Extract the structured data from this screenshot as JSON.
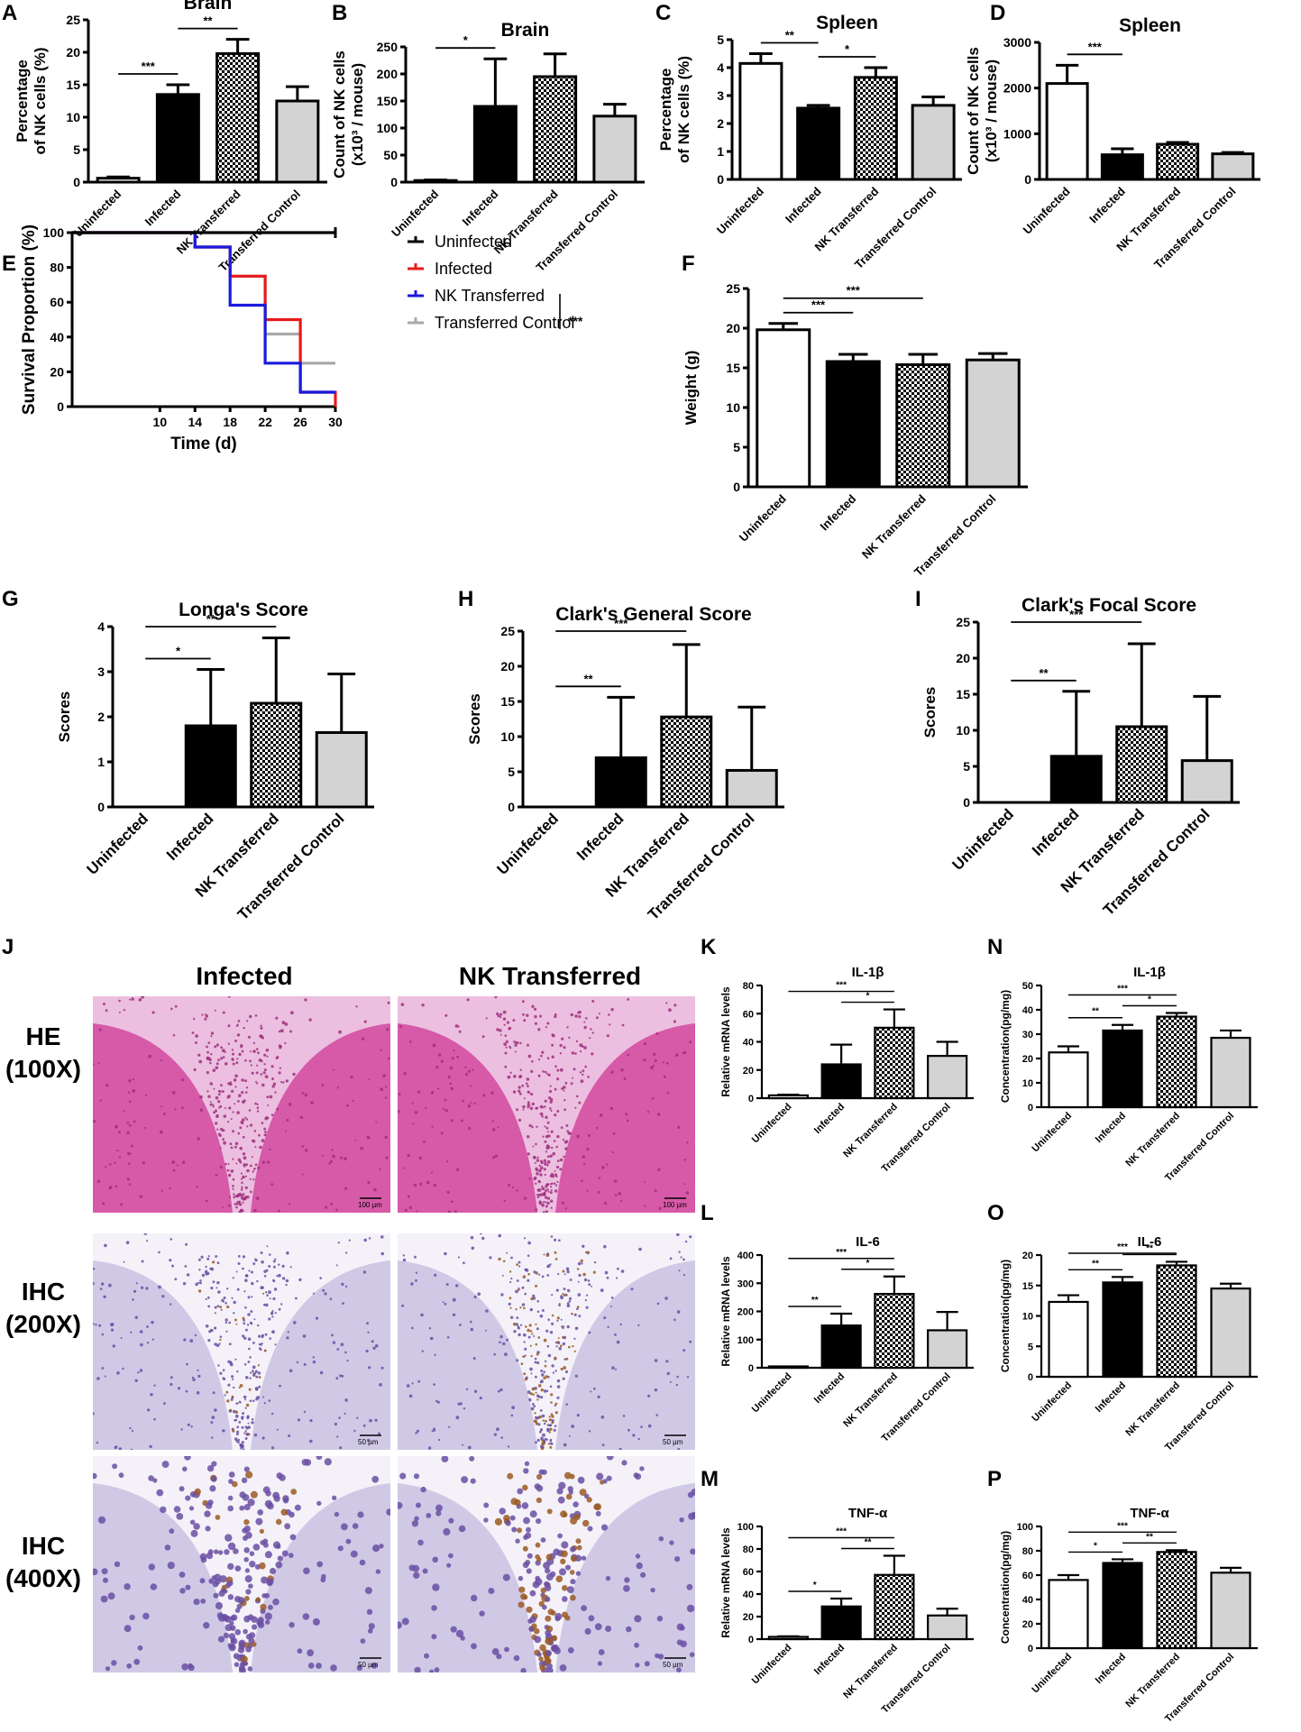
{
  "panel_labels": [
    "A",
    "B",
    "C",
    "D",
    "E",
    "F",
    "G",
    "H",
    "I",
    "J",
    "K",
    "L",
    "M",
    "N",
    "O",
    "P"
  ],
  "groups": [
    "Uninfected",
    "Infected",
    "NK Transferred",
    "Transferred Control"
  ],
  "fills": {
    "Uninfected": "white",
    "Infected": "black",
    "NK Transferred": "checker",
    "Transferred Control": "#d3d3d3"
  },
  "chart_data": [
    {
      "id": "A",
      "type": "bar",
      "title": "Brain",
      "ylabel": "Percentage of NK cells (%)",
      "ylim": [
        0,
        25
      ],
      "yticks": [
        0,
        5,
        10,
        15,
        20,
        25
      ],
      "categories": [
        "Uninfected",
        "Infected",
        "NK Transferred",
        "Transferred Control"
      ],
      "values": [
        0.6,
        13.5,
        19.8,
        12.5
      ],
      "errors": [
        0.2,
        1.5,
        2.2,
        2.2
      ],
      "significance": [
        {
          "from": 0,
          "to": 1,
          "label": "***"
        },
        {
          "from": 1,
          "to": 2,
          "label": "**"
        }
      ]
    },
    {
      "id": "B",
      "type": "bar",
      "title": "Brain",
      "ylabel": "Count of NK cells (x10³ / mouse)",
      "ylim": [
        0,
        250
      ],
      "yticks": [
        0,
        50,
        100,
        150,
        200,
        250
      ],
      "categories": [
        "Uninfected",
        "Infected",
        "NK Transferred",
        "Transferred Control"
      ],
      "values": [
        3,
        140,
        195,
        122
      ],
      "errors": [
        1,
        88,
        42,
        22
      ],
      "significance": [
        {
          "from": 0,
          "to": 1,
          "label": "*"
        }
      ]
    },
    {
      "id": "C",
      "type": "bar",
      "title": "Spleen",
      "ylabel": "Percentage of NK cells (%)",
      "ylim": [
        0,
        5
      ],
      "yticks": [
        0,
        1,
        2,
        3,
        4,
        5
      ],
      "categories": [
        "Uninfected",
        "Infected",
        "NK Transferred",
        "Transferred Control"
      ],
      "values": [
        4.15,
        2.55,
        3.65,
        2.65
      ],
      "errors": [
        0.35,
        0.1,
        0.35,
        0.3
      ],
      "significance": [
        {
          "from": 0,
          "to": 1,
          "label": "**"
        },
        {
          "from": 1,
          "to": 2,
          "label": "*"
        }
      ]
    },
    {
      "id": "D",
      "type": "bar",
      "title": "Spleen",
      "ylabel": "Count of NK cells (x10³ / mouse)",
      "ylim": [
        0,
        3000
      ],
      "yticks": [
        0,
        1000,
        2000,
        3000
      ],
      "categories": [
        "Uninfected",
        "Infected",
        "NK Transferred",
        "Transferred Control"
      ],
      "values": [
        2100,
        540,
        770,
        560
      ],
      "errors": [
        400,
        130,
        40,
        30
      ],
      "significance": [
        {
          "from": 0,
          "to": 1,
          "label": "***"
        }
      ]
    },
    {
      "id": "E",
      "type": "line",
      "xlabel": "Time (d)",
      "ylabel": "Survival Proportion (%)",
      "xlim": [
        0,
        30
      ],
      "ylim": [
        0,
        100
      ],
      "xticks": [
        10,
        14,
        18,
        22,
        26,
        30
      ],
      "yticks": [
        0,
        20,
        40,
        60,
        80,
        100
      ],
      "series": [
        {
          "name": "Uninfected",
          "color": "#000000",
          "x": [
            0,
            30
          ],
          "y": [
            100,
            100
          ]
        },
        {
          "name": "Infected",
          "color": "#e8191c",
          "x": [
            0,
            14,
            14,
            18,
            18,
            22,
            22,
            26,
            26,
            30,
            30
          ],
          "y": [
            100,
            100,
            91.7,
            91.7,
            75,
            75,
            50,
            50,
            8.3,
            8.3,
            0
          ]
        },
        {
          "name": "NK Transferred",
          "color": "#1a1adc",
          "x": [
            0,
            14,
            14,
            18,
            18,
            22,
            22,
            26,
            26,
            30
          ],
          "y": [
            100,
            100,
            91.7,
            91.7,
            58.3,
            58.3,
            25,
            25,
            8.3,
            8.3
          ]
        },
        {
          "name": "Transferred Control",
          "color": "#a9a9a9",
          "x": [
            0,
            14,
            14,
            18,
            18,
            22,
            22,
            26,
            26,
            30
          ],
          "y": [
            100,
            100,
            91.7,
            91.7,
            75,
            75,
            41.7,
            41.7,
            25,
            25
          ]
        }
      ],
      "significance": "***"
    },
    {
      "id": "F",
      "type": "bar",
      "ylabel": "Weight (g)",
      "ylim": [
        0,
        25
      ],
      "yticks": [
        0,
        5,
        10,
        15,
        20,
        25
      ],
      "categories": [
        "",
        "Infected",
        "NK Transferred",
        "Transferred Control"
      ],
      "values": [
        19.8,
        15.8,
        15.4,
        16.0
      ],
      "errors": [
        0.8,
        0.9,
        1.3,
        0.8
      ],
      "significance": [
        {
          "from": 0,
          "to": 1,
          "label": "***"
        },
        {
          "from": 0,
          "to": 2,
          "label": "***"
        }
      ]
    },
    {
      "id": "G",
      "type": "bar",
      "title": "Longa's Score",
      "ylabel": "Scores",
      "ylim": [
        0,
        4
      ],
      "yticks": [
        0,
        1,
        2,
        3,
        4
      ],
      "categories": [
        "Uninfected",
        "Infected",
        "NK Transferred",
        "Transferred Control"
      ],
      "values": [
        0,
        1.8,
        2.3,
        1.65
      ],
      "errors": [
        0,
        1.25,
        1.45,
        1.3
      ],
      "significance": [
        {
          "from": 0,
          "to": 1,
          "label": "*"
        },
        {
          "from": 0,
          "to": 2,
          "label": "**"
        }
      ]
    },
    {
      "id": "H",
      "type": "bar",
      "title": "Clark's General Score",
      "ylabel": "Scores",
      "ylim": [
        0,
        25
      ],
      "yticks": [
        0,
        5,
        10,
        15,
        20,
        25
      ],
      "categories": [
        "Uninfected",
        "Infected",
        "NK Transferred",
        "Transferred Control"
      ],
      "values": [
        0,
        7,
        12.8,
        5.2
      ],
      "errors": [
        0,
        8.6,
        10.3,
        9.0
      ],
      "significance": [
        {
          "from": 0,
          "to": 1,
          "label": "**"
        },
        {
          "from": 0,
          "to": 2,
          "label": "***"
        }
      ]
    },
    {
      "id": "I",
      "type": "bar",
      "title": "Clark's Focal Score",
      "ylabel": "Scores",
      "ylim": [
        0,
        25
      ],
      "yticks": [
        0,
        5,
        10,
        15,
        20,
        25
      ],
      "categories": [
        "Uninfected",
        "Infected",
        "NK Transferred",
        "Transferred Control"
      ],
      "values": [
        0,
        6.4,
        10.5,
        5.8
      ],
      "errors": [
        0,
        9.0,
        11.5,
        8.9
      ],
      "significance": [
        {
          "from": 0,
          "to": 1,
          "label": "**"
        },
        {
          "from": 0,
          "to": 2,
          "label": "***"
        }
      ]
    },
    {
      "id": "K",
      "type": "bar",
      "title": "IL-1β",
      "ylabel": "Relative mRNA levels",
      "ylim": [
        0,
        80
      ],
      "yticks": [
        0,
        20,
        40,
        60,
        80
      ],
      "categories": [
        "Uninfected",
        "Infected",
        "NK Transferred",
        "Transferred Control"
      ],
      "values": [
        2,
        24,
        50,
        30
      ],
      "errors": [
        0.5,
        14,
        13,
        10
      ],
      "significance": [
        {
          "from": 1,
          "to": 2,
          "label": "*"
        },
        {
          "from": 0,
          "to": 2,
          "label": "***"
        }
      ]
    },
    {
      "id": "L",
      "type": "bar",
      "title": "IL-6",
      "ylabel": "Relative mRNA levels",
      "ylim": [
        0,
        400
      ],
      "yticks": [
        0,
        100,
        200,
        300,
        400
      ],
      "categories": [
        "Uninfected",
        "Infected",
        "NK Transferred",
        "Transferred Control"
      ],
      "values": [
        3,
        150,
        262,
        133
      ],
      "errors": [
        1,
        42,
        62,
        65
      ],
      "significance": [
        {
          "from": 0,
          "to": 1,
          "label": "**"
        },
        {
          "from": 1,
          "to": 2,
          "label": "*"
        },
        {
          "from": 0,
          "to": 2,
          "label": "***"
        }
      ]
    },
    {
      "id": "M",
      "type": "bar",
      "title": "TNF-α",
      "ylabel": "Relative mRNA levels",
      "ylim": [
        0,
        100
      ],
      "yticks": [
        0,
        20,
        40,
        60,
        80,
        100
      ],
      "categories": [
        "Uninfected",
        "Infected",
        "NK Transferred",
        "Transferred Control"
      ],
      "values": [
        2,
        29,
        57,
        21
      ],
      "errors": [
        0.5,
        7,
        17,
        6
      ],
      "significance": [
        {
          "from": 0,
          "to": 1,
          "label": "*"
        },
        {
          "from": 1,
          "to": 2,
          "label": "**"
        },
        {
          "from": 0,
          "to": 2,
          "label": "***"
        }
      ]
    },
    {
      "id": "N",
      "type": "bar",
      "title": "IL-1β",
      "ylabel": "Concentration(pg/mg)",
      "ylim": [
        0,
        50
      ],
      "yticks": [
        0,
        10,
        20,
        30,
        40,
        50
      ],
      "categories": [
        "Uninfected",
        "Infected",
        "NK Transferred",
        "Transferred Control"
      ],
      "values": [
        22.5,
        31.5,
        37.2,
        28.5
      ],
      "errors": [
        2.5,
        2.3,
        1.5,
        3
      ],
      "significance": [
        {
          "from": 0,
          "to": 1,
          "label": "**"
        },
        {
          "from": 1,
          "to": 2,
          "label": "*"
        },
        {
          "from": 0,
          "to": 2,
          "label": "***"
        }
      ]
    },
    {
      "id": "O",
      "type": "bar",
      "title": "IL-6",
      "ylabel": "Concentration(pg/mg)",
      "ylim": [
        0,
        20
      ],
      "yticks": [
        0,
        5,
        10,
        15,
        20
      ],
      "categories": [
        "Uninfected",
        "Infected",
        "NK Transferred",
        "Transferred Control"
      ],
      "values": [
        12.3,
        15.5,
        18.3,
        14.5
      ],
      "errors": [
        1.1,
        0.9,
        0.6,
        0.8
      ],
      "significance": [
        {
          "from": 0,
          "to": 1,
          "label": "**"
        },
        {
          "from": 1,
          "to": 2,
          "label": "**"
        },
        {
          "from": 0,
          "to": 2,
          "label": "***"
        }
      ]
    },
    {
      "id": "P",
      "type": "bar",
      "title": "TNF-α",
      "ylabel": "Concentration(pg/mg)",
      "ylim": [
        0,
        100
      ],
      "yticks": [
        0,
        20,
        40,
        60,
        80,
        100
      ],
      "categories": [
        "Uninfected",
        "Infected",
        "NK Transferred",
        "Transferred Control"
      ],
      "values": [
        56,
        70,
        79,
        62
      ],
      "errors": [
        4,
        3,
        1.5,
        4
      ],
      "significance": [
        {
          "from": 0,
          "to": 1,
          "label": "*"
        },
        {
          "from": 1,
          "to": 2,
          "label": "**"
        },
        {
          "from": 0,
          "to": 2,
          "label": "***"
        }
      ]
    }
  ],
  "histology": {
    "column_headers": [
      "Infected",
      "NK  Transferred"
    ],
    "row_labels": [
      [
        "HE",
        "(100X)"
      ],
      [
        "IHC",
        "(200X)"
      ],
      [
        "IHC",
        "(400X)"
      ]
    ],
    "scale_bars": [
      "100 µm",
      "100 µm",
      "50 µm",
      "50 µm",
      "50 µm",
      "50 µm"
    ],
    "colors": {
      "he_bg": "#d65aa8",
      "he_dark": "#a0307e",
      "he_light": "#ecbfe0",
      "ihc_bg": "#cfc9e6",
      "ihc_cells": "#6a4fa3",
      "ihc_brown": "#9b5a24"
    }
  }
}
